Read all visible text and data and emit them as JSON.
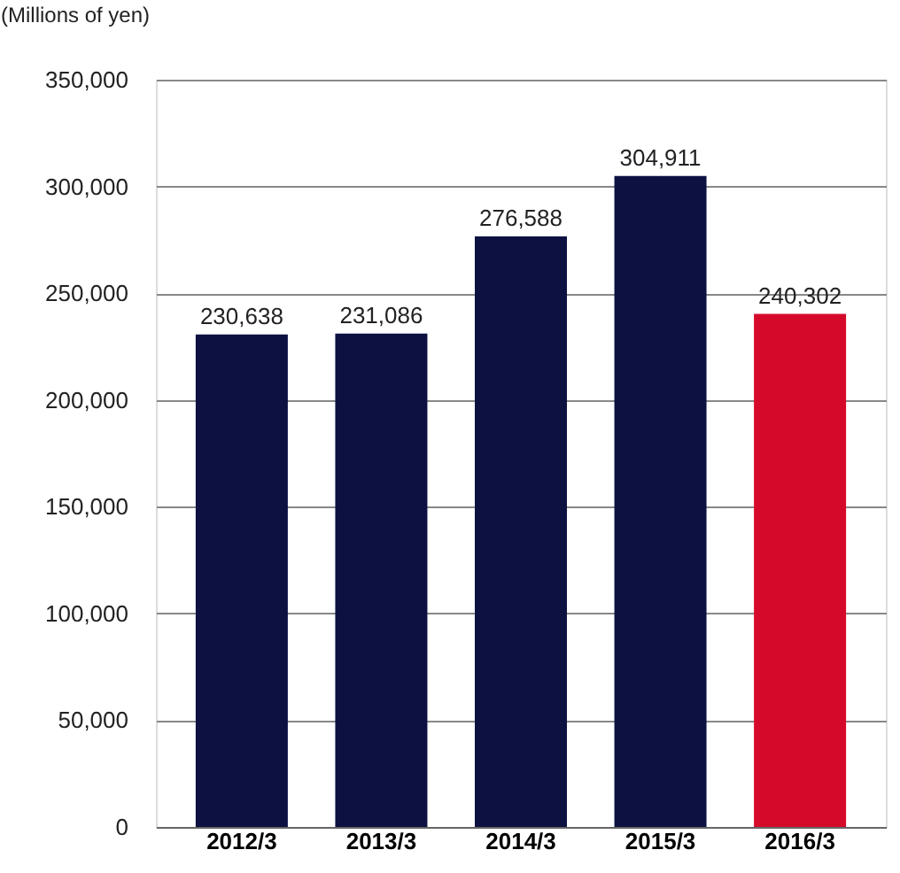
{
  "chart_data": {
    "type": "bar",
    "ylabel": "(Millions of yen)",
    "categories": [
      "2012/3",
      "2013/3",
      "2014/3",
      "2015/3",
      "2016/3"
    ],
    "values": [
      230638,
      231086,
      276588,
      304911,
      240302
    ],
    "colors": [
      "#0c1142",
      "#0c1142",
      "#0c1142",
      "#0c1142",
      "#d50a2a"
    ],
    "value_labels": [
      "230,638",
      "231,086",
      "276,588",
      "304,911",
      "240,302"
    ],
    "ylim": [
      0,
      350000
    ],
    "yticks": [
      0,
      {
        "value": 50000,
        "label": "50,000"
      },
      {
        "value": 100000,
        "label": "100,000"
      },
      {
        "value": 150000,
        "label": "150,000"
      },
      {
        "value": 200000,
        "label": "200,000"
      },
      {
        "value": 250000,
        "label": "250,000"
      },
      {
        "value": 300000,
        "label": "300,000"
      },
      {
        "value": 350000,
        "label": "350,000"
      }
    ],
    "grid": "y"
  }
}
